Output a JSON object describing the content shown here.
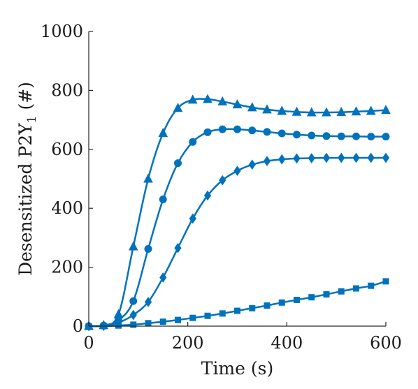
{
  "chart_data": {
    "type": "line",
    "title": "",
    "xlabel": "Time (s)",
    "ylabel_main": "Desensitized P2Y",
    "ylabel_sub": "1",
    "ylabel_tail": " (#)",
    "xlim": [
      0,
      600
    ],
    "ylim": [
      0,
      1000
    ],
    "xticks": [
      0,
      200,
      400,
      600
    ],
    "yticks": [
      0,
      200,
      400,
      600,
      800,
      1000
    ],
    "grid": false,
    "legend": "none",
    "line_color": "#0072BD",
    "series": [
      {
        "marker": "triangle",
        "points": [
          [
            0,
            0
          ],
          [
            30,
            3
          ],
          [
            60,
            40
          ],
          [
            90,
            270
          ],
          [
            120,
            500
          ],
          [
            150,
            655
          ],
          [
            180,
            740
          ],
          [
            210,
            768
          ],
          [
            240,
            770
          ],
          [
            270,
            762
          ],
          [
            300,
            752
          ],
          [
            330,
            742
          ],
          [
            360,
            735
          ],
          [
            390,
            730
          ],
          [
            420,
            727
          ],
          [
            450,
            725
          ],
          [
            480,
            725
          ],
          [
            510,
            726
          ],
          [
            540,
            728
          ],
          [
            570,
            730
          ],
          [
            600,
            733
          ]
        ]
      },
      {
        "marker": "circle",
        "points": [
          [
            0,
            0
          ],
          [
            30,
            2
          ],
          [
            60,
            20
          ],
          [
            90,
            85
          ],
          [
            120,
            262
          ],
          [
            150,
            430
          ],
          [
            180,
            553
          ],
          [
            210,
            625
          ],
          [
            240,
            658
          ],
          [
            270,
            668
          ],
          [
            300,
            668
          ],
          [
            330,
            664
          ],
          [
            360,
            659
          ],
          [
            390,
            654
          ],
          [
            420,
            650
          ],
          [
            450,
            647
          ],
          [
            480,
            645
          ],
          [
            510,
            644
          ],
          [
            540,
            644
          ],
          [
            570,
            643
          ],
          [
            600,
            643
          ]
        ]
      },
      {
        "marker": "diamond",
        "points": [
          [
            0,
            0
          ],
          [
            30,
            1
          ],
          [
            60,
            12
          ],
          [
            90,
            38
          ],
          [
            120,
            82
          ],
          [
            150,
            165
          ],
          [
            180,
            265
          ],
          [
            210,
            365
          ],
          [
            240,
            443
          ],
          [
            270,
            495
          ],
          [
            300,
            527
          ],
          [
            330,
            548
          ],
          [
            360,
            560
          ],
          [
            390,
            566
          ],
          [
            420,
            569
          ],
          [
            450,
            570
          ],
          [
            480,
            571
          ],
          [
            510,
            571
          ],
          [
            540,
            571
          ],
          [
            570,
            571
          ],
          [
            600,
            571
          ]
        ]
      },
      {
        "marker": "square",
        "points": [
          [
            0,
            0
          ],
          [
            30,
            0
          ],
          [
            60,
            2
          ],
          [
            90,
            5
          ],
          [
            120,
            10
          ],
          [
            150,
            15
          ],
          [
            180,
            21
          ],
          [
            210,
            28
          ],
          [
            240,
            35
          ],
          [
            270,
            43
          ],
          [
            300,
            52
          ],
          [
            330,
            61
          ],
          [
            360,
            70
          ],
          [
            390,
            80
          ],
          [
            420,
            89
          ],
          [
            450,
            98
          ],
          [
            480,
            108
          ],
          [
            510,
            118
          ],
          [
            540,
            128
          ],
          [
            570,
            137
          ],
          [
            600,
            152
          ]
        ]
      }
    ]
  }
}
